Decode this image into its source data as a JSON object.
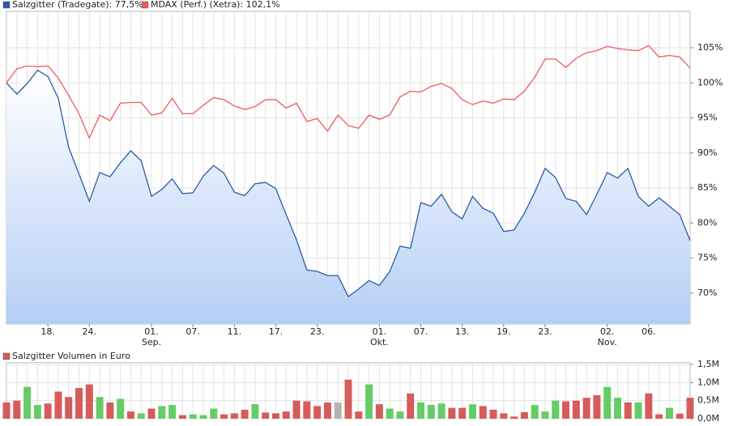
{
  "chart_data": [
    {
      "type": "line",
      "categories": [
        null,
        null,
        null,
        null,
        "18.",
        null,
        null,
        null,
        "24.",
        null,
        null,
        null,
        null,
        null,
        "01.\nSep.",
        null,
        null,
        null,
        "07.",
        null,
        null,
        null,
        "11.",
        null,
        null,
        null,
        "17.",
        null,
        null,
        null,
        "23.",
        null,
        null,
        null,
        null,
        null,
        "01.\nOkt.",
        null,
        null,
        null,
        "07.",
        null,
        null,
        null,
        "13.",
        null,
        null,
        null,
        "19.",
        null,
        null,
        null,
        "23.",
        null,
        null,
        null,
        null,
        null,
        "02.\nNov.",
        null,
        null,
        null,
        "06.",
        null,
        null,
        null,
        null
      ],
      "series": [
        {
          "name": "Salzgitter (Tradegate): 77,5%",
          "color": "#2a5ca8",
          "area": true,
          "values": [
            100,
            98.4,
            99.9,
            101.8,
            100.9,
            97.8,
            90.8,
            87,
            83.1,
            87.2,
            86.6,
            88.6,
            90.3,
            88.9,
            83.8,
            84.8,
            86.3,
            84.2,
            84.3,
            86.7,
            88.2,
            87.1,
            84.4,
            83.9,
            85.6,
            85.8,
            84.9,
            81.2,
            77.6,
            73.3,
            73.1,
            72.5,
            72.5,
            69.5,
            70.6,
            71.8,
            71.1,
            73.1,
            76.7,
            76.4,
            82.9,
            82.4,
            84.1,
            81.6,
            80.6,
            83.8,
            82.1,
            81.4,
            78.8,
            79,
            81.4,
            84.4,
            87.8,
            86.5,
            83.5,
            83.1,
            81.2,
            84.1,
            87.2,
            86.4,
            87.8,
            83.8,
            82.4,
            83.6,
            82.4,
            81.2,
            77.5
          ]
        },
        {
          "name": "MDAX (Perf.) (Xetra): 102,1%",
          "color": "#f05a5a",
          "area": false,
          "values": [
            100,
            102,
            102.4,
            102.3,
            102.4,
            100.7,
            98.2,
            95.6,
            92.1,
            95.4,
            94.6,
            97.1,
            97.2,
            97.2,
            95.4,
            95.7,
            97.8,
            95.6,
            95.6,
            96.8,
            97.9,
            97.6,
            96.7,
            96.2,
            96.6,
            97.6,
            97.6,
            96.4,
            97.1,
            94.5,
            94.9,
            93.1,
            95.4,
            93.9,
            93.5,
            95.4,
            94.8,
            95.4,
            98,
            98.8,
            98.7,
            99.5,
            99.9,
            99.2,
            97.6,
            96.9,
            97.4,
            97.1,
            97.7,
            97.6,
            98.8,
            100.8,
            103.4,
            103.4,
            102.2,
            103.5,
            104.3,
            104.6,
            105.2,
            104.9,
            104.7,
            104.6,
            105.3,
            103.7,
            103.9,
            103.7,
            102.1
          ]
        }
      ],
      "ylim": [
        65.6,
        110.2
      ],
      "yticks": [
        {
          "value": 70,
          "label": "70%"
        },
        {
          "value": 75,
          "label": "75%"
        },
        {
          "value": 80,
          "label": "80%"
        },
        {
          "value": 85,
          "label": "85%"
        },
        {
          "value": 90,
          "label": "90%"
        },
        {
          "value": 95,
          "label": "95%"
        },
        {
          "value": 100,
          "label": "100%"
        },
        {
          "value": 105,
          "label": "105%"
        }
      ],
      "grid": true
    },
    {
      "type": "bar",
      "series": [
        {
          "name": "Salzgitter Volumen in Euro",
          "color": "#d65c5c",
          "values": [
            450000,
            500000,
            880000,
            380000,
            420000,
            750000,
            600000,
            850000,
            950000,
            600000,
            450000,
            550000,
            200000,
            150000,
            280000,
            350000,
            380000,
            100000,
            120000,
            100000,
            280000,
            120000,
            150000,
            250000,
            400000,
            170000,
            150000,
            200000,
            500000,
            480000,
            350000,
            450000,
            450000,
            1080000,
            200000,
            950000,
            400000,
            280000,
            200000,
            700000,
            450000,
            380000,
            420000,
            300000,
            300000,
            400000,
            350000,
            250000,
            150000,
            60000,
            180000,
            380000,
            200000,
            500000,
            480000,
            500000,
            580000,
            650000,
            880000,
            580000,
            450000,
            450000,
            700000,
            120000,
            300000,
            140000,
            580000
          ],
          "colors": [
            "#d65c5c",
            "#d65c5c",
            "#66cc66",
            "#66cc66",
            "#d65c5c",
            "#d65c5c",
            "#d65c5c",
            "#d65c5c",
            "#d65c5c",
            "#66cc66",
            "#d65c5c",
            "#66cc66",
            "#d65c5c",
            "#66cc66",
            "#d65c5c",
            "#66cc66",
            "#66cc66",
            "#d65c5c",
            "#66cc66",
            "#66cc66",
            "#66cc66",
            "#d65c5c",
            "#d65c5c",
            "#d65c5c",
            "#66cc66",
            "#d65c5c",
            "#d65c5c",
            "#d65c5c",
            "#d65c5c",
            "#d65c5c",
            "#d65c5c",
            "#d65c5c",
            "#b4b4b4",
            "#d65c5c",
            "#d65c5c",
            "#66cc66",
            "#d65c5c",
            "#66cc66",
            "#66cc66",
            "#d65c5c",
            "#66cc66",
            "#66cc66",
            "#66cc66",
            "#d65c5c",
            "#d65c5c",
            "#66cc66",
            "#d65c5c",
            "#d65c5c",
            "#d65c5c",
            "#d65c5c",
            "#d65c5c",
            "#66cc66",
            "#66cc66",
            "#66cc66",
            "#d65c5c",
            "#d65c5c",
            "#d65c5c",
            "#d65c5c",
            "#66cc66",
            "#66cc66",
            "#d65c5c",
            "#66cc66",
            "#d65c5c",
            "#d65c5c",
            "#66cc66",
            "#d65c5c",
            "#d65c5c"
          ]
        }
      ],
      "ylim": [
        0,
        1550000
      ],
      "yticks": [
        {
          "value": 0,
          "label": "0,0M"
        },
        {
          "value": 500000,
          "label": "0,5M"
        },
        {
          "value": 1000000,
          "label": "1,0M"
        },
        {
          "value": 1500000,
          "label": "1,5M"
        }
      ],
      "grid": true
    }
  ]
}
